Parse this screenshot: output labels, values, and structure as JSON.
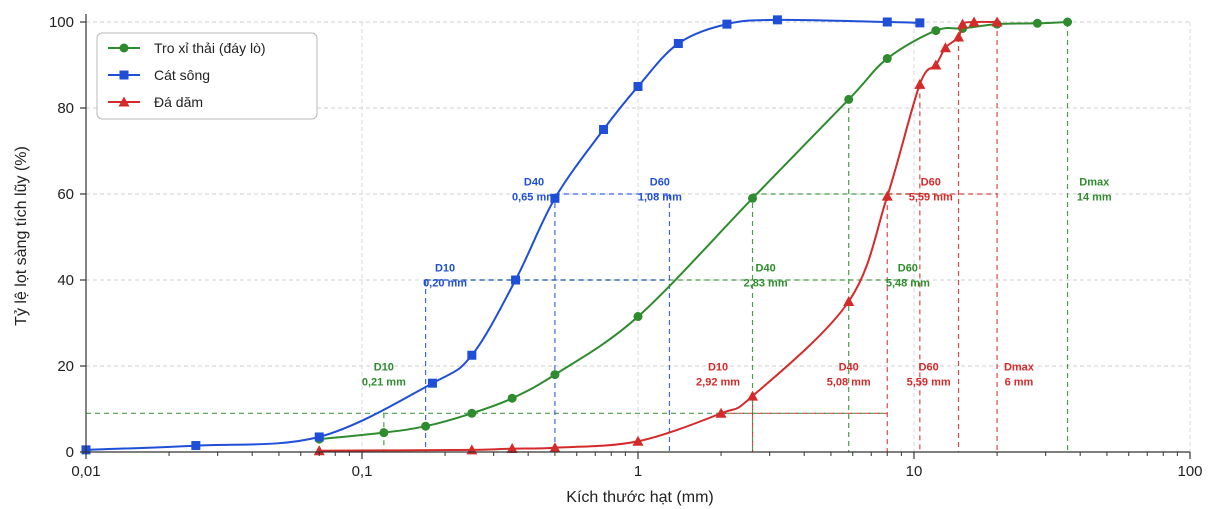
{
  "chart_data": {
    "type": "line",
    "x_scale": "log",
    "xlim": [
      0.01,
      100
    ],
    "ylim": [
      0,
      100
    ],
    "xlabel": "Kích thước hạt (mm)",
    "ylabel": "Tỷ lệ lọt sàng tích lũy (%)",
    "x_tick_labels": [
      {
        "value": 0.01,
        "label": "0,01"
      },
      {
        "value": 0.1,
        "label": "0,1"
      },
      {
        "value": 1,
        "label": "1"
      },
      {
        "value": 10,
        "label": "10"
      },
      {
        "value": 100,
        "label": "100"
      }
    ],
    "y_tick_labels": [
      {
        "value": 0,
        "label": "0"
      },
      {
        "value": 20,
        "label": "20"
      },
      {
        "value": 40,
        "label": "40"
      },
      {
        "value": 60,
        "label": "60"
      },
      {
        "value": 80,
        "label": "80"
      },
      {
        "value": 100,
        "label": "100"
      }
    ],
    "grid": true,
    "legend_position": "top-left",
    "series": [
      {
        "name": "Tro xỉ thải (đáy lò)",
        "color": "#2e8b2e",
        "marker": "circle",
        "points": [
          [
            0.07,
            3
          ],
          [
            0.12,
            4.5
          ],
          [
            0.17,
            6
          ],
          [
            0.25,
            9
          ],
          [
            0.35,
            12.5
          ],
          [
            0.5,
            18
          ],
          [
            1,
            31.5
          ],
          [
            2.6,
            59
          ],
          [
            5.8,
            82
          ],
          [
            8,
            91.5
          ],
          [
            12,
            98
          ],
          [
            15,
            98.5
          ],
          [
            20,
            99.5
          ],
          [
            28,
            99.7
          ],
          [
            36,
            100
          ]
        ]
      },
      {
        "name": "Cát sông",
        "color": "#1f4fd6",
        "marker": "square",
        "points": [
          [
            0.01,
            0.5
          ],
          [
            0.025,
            1.5
          ],
          [
            0.07,
            3.5
          ],
          [
            0.18,
            16
          ],
          [
            0.25,
            22.5
          ],
          [
            0.36,
            40
          ],
          [
            0.5,
            59
          ],
          [
            0.75,
            75
          ],
          [
            1,
            85
          ],
          [
            1.4,
            95
          ],
          [
            2.1,
            99.5
          ],
          [
            3.2,
            100.5
          ],
          [
            8,
            100
          ],
          [
            10.5,
            99.8
          ]
        ]
      },
      {
        "name": "Đá dăm",
        "color": "#d42a2a",
        "marker": "triangle",
        "points": [
          [
            0.07,
            0.3
          ],
          [
            0.25,
            0.5
          ],
          [
            0.35,
            0.8
          ],
          [
            0.5,
            1
          ],
          [
            1,
            2.5
          ],
          [
            2,
            9
          ],
          [
            2.6,
            13
          ],
          [
            5.8,
            35
          ],
          [
            8,
            59.5
          ],
          [
            10.5,
            85.5
          ],
          [
            12,
            90
          ],
          [
            13,
            94
          ],
          [
            14.5,
            96.5
          ],
          [
            15,
            99.5
          ],
          [
            16.5,
            100
          ],
          [
            20,
            100
          ]
        ]
      }
    ],
    "reference_lines": [
      {
        "color": "#2e8b2e",
        "y": 9,
        "x_from": 0.01,
        "x_to": 8
      },
      {
        "color": "#2e8b2e",
        "y": 40,
        "x_from": 0.17,
        "x_to": 10
      },
      {
        "color": "#2e8b2e",
        "y": 60,
        "x_from": 2.6,
        "x_to": 12
      },
      {
        "color": "#1f4fd6",
        "y": 40,
        "x_from": 0.17,
        "x_to": 1.3
      },
      {
        "color": "#1f4fd6",
        "y": 60,
        "x_from": 0.5,
        "x_to": 1.3
      },
      {
        "color": "#d42a2a",
        "y": 9,
        "x_from": 2,
        "x_to": 8
      },
      {
        "color": "#d42a2a",
        "y": 60,
        "x_from": 8,
        "x_to": 20
      }
    ],
    "vertical_lines": [
      {
        "color": "#2e8b2e",
        "x": 0.12,
        "y_to": 9
      },
      {
        "color": "#2e8b2e",
        "x": 2.6,
        "y_to": 60
      },
      {
        "color": "#2e8b2e",
        "x": 5.8,
        "y_to": 80
      },
      {
        "color": "#2e8b2e",
        "x": 36,
        "y_to": 100
      },
      {
        "color": "#1f4fd6",
        "x": 0.17,
        "y_to": 40
      },
      {
        "color": "#1f4fd6",
        "x": 0.5,
        "y_to": 60
      },
      {
        "color": "#1f4fd6",
        "x": 1.3,
        "y_to": 60
      },
      {
        "color": "#d42a2a",
        "x": 2.6,
        "y_to": 13
      },
      {
        "color": "#d42a2a",
        "x": 8,
        "y_to": 59.5
      },
      {
        "color": "#d42a2a",
        "x": 10.5,
        "y_to": 85.5
      },
      {
        "color": "#d42a2a",
        "x": 14.5,
        "y_to": 96.5
      },
      {
        "color": "#d42a2a",
        "x": 20,
        "y_to": 100
      }
    ],
    "annotations": [
      {
        "color": "#2e8b2e",
        "x": 0.12,
        "y": 19,
        "lines": [
          "D10",
          "0,21 mm"
        ]
      },
      {
        "color": "#2e8b2e",
        "x": 2.9,
        "y": 42,
        "lines": [
          "D40",
          "2,83 mm"
        ]
      },
      {
        "color": "#2e8b2e",
        "x": 9.5,
        "y": 42,
        "lines": [
          "D60",
          "5,48 mm"
        ]
      },
      {
        "color": "#2e8b2e",
        "x": 45,
        "y": 62,
        "lines": [
          "Dmax",
          "14 mm"
        ]
      },
      {
        "color": "#1f4fd6",
        "x": 0.2,
        "y": 42,
        "lines": [
          "D10",
          "0,20 mm"
        ]
      },
      {
        "color": "#1f4fd6",
        "x": 0.42,
        "y": 62,
        "lines": [
          "D40",
          "0,65 mm"
        ]
      },
      {
        "color": "#1f4fd6",
        "x": 1.2,
        "y": 62,
        "lines": [
          "D60",
          "1,08 mm"
        ]
      },
      {
        "color": "#d42a2a",
        "x": 1.95,
        "y": 19,
        "lines": [
          "D10",
          "2,92 mm"
        ]
      },
      {
        "color": "#d42a2a",
        "x": 5.8,
        "y": 19,
        "lines": [
          "D40",
          "5,08 mm"
        ]
      },
      {
        "color": "#d42a2a",
        "x": 11.3,
        "y": 19,
        "lines": [
          "D60",
          "5,59 mm"
        ]
      },
      {
        "color": "#d42a2a",
        "x": 24,
        "y": 19,
        "lines": [
          "Dmax",
          "6 mm"
        ]
      },
      {
        "color": "#d42a2a",
        "x": 11.5,
        "y": 62,
        "lines": [
          "D60",
          "5,59 mm"
        ]
      }
    ]
  }
}
